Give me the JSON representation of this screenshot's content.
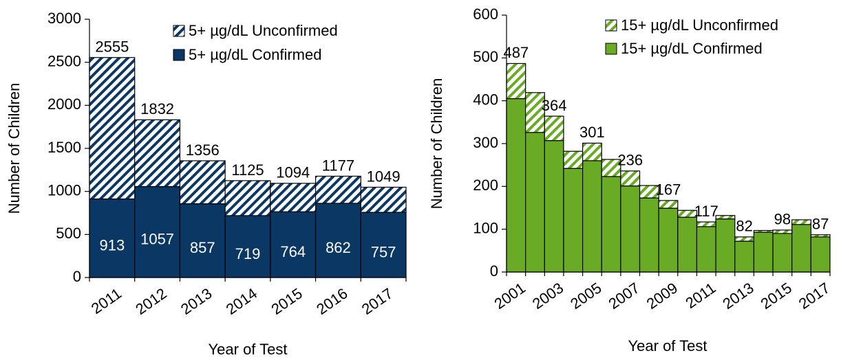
{
  "chart_data": [
    {
      "type": "bar",
      "stacked": true,
      "x_label": "Year of Test",
      "y_label": "Number of Children",
      "categories": [
        "2011",
        "2012",
        "2013",
        "2014",
        "2015",
        "2016",
        "2017"
      ],
      "series": [
        {
          "name": "5+ µg/dL Confirmed",
          "color": "#0a3764",
          "fill": "solid",
          "values": [
            913,
            1057,
            857,
            719,
            764,
            862,
            757
          ]
        },
        {
          "name": "5+ µg/dL Unconfirmed",
          "color": "#0a3764",
          "fill": "hatch",
          "values": [
            1642,
            775,
            499,
            406,
            330,
            315,
            292
          ]
        }
      ],
      "totals": [
        2555,
        1832,
        1356,
        1125,
        1094,
        1177,
        1049
      ],
      "inner_labels": true,
      "ylim": [
        0,
        3000
      ],
      "yticks": [
        0,
        500,
        1000,
        1500,
        2000,
        2500,
        3000
      ]
    },
    {
      "type": "bar",
      "stacked": true,
      "x_label": "Year of Test",
      "y_label": "Number of Children",
      "categories": [
        "2001",
        null,
        "2003",
        null,
        "2005",
        null,
        "2007",
        null,
        "2009",
        null,
        "2011",
        null,
        "2013",
        null,
        "2015",
        null,
        "2017"
      ],
      "series": [
        {
          "name": "15+ µg/dL Confirmed",
          "color": "#6aab25",
          "fill": "solid",
          "values": [
            405,
            326,
            307,
            242,
            260,
            223,
            201,
            173,
            149,
            128,
            106,
            124,
            72,
            93,
            90,
            111,
            82
          ]
        },
        {
          "name": "15+ µg/dL Unconfirmed",
          "color": "#6aab25",
          "fill": "hatch",
          "values": [
            82,
            93,
            57,
            40,
            41,
            40,
            35,
            29,
            18,
            16,
            11,
            8,
            10,
            4,
            8,
            11,
            5
          ]
        }
      ],
      "totals": [
        487,
        null,
        364,
        null,
        301,
        null,
        236,
        null,
        167,
        null,
        117,
        null,
        82,
        null,
        98,
        null,
        87
      ],
      "inner_labels": false,
      "ylim": [
        0,
        600
      ],
      "yticks": [
        0,
        100,
        200,
        300,
        400,
        500,
        600
      ]
    }
  ]
}
